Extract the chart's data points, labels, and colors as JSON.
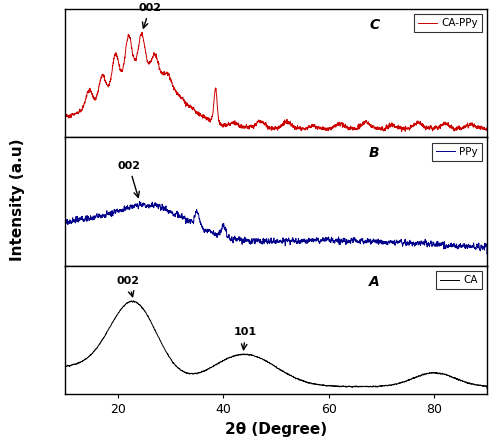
{
  "xlabel": "2θ (Degree)",
  "ylabel": "Intensity (a.u)",
  "xlim": [
    10,
    90
  ],
  "panel_labels": [
    "C",
    "B",
    "A"
  ],
  "legend_labels": [
    "CA-PPy",
    "PPy",
    "CA"
  ],
  "colors": [
    "#cc0000",
    "#00008B",
    "#000000"
  ],
  "background_color": "#ffffff",
  "linewidth": 0.7
}
